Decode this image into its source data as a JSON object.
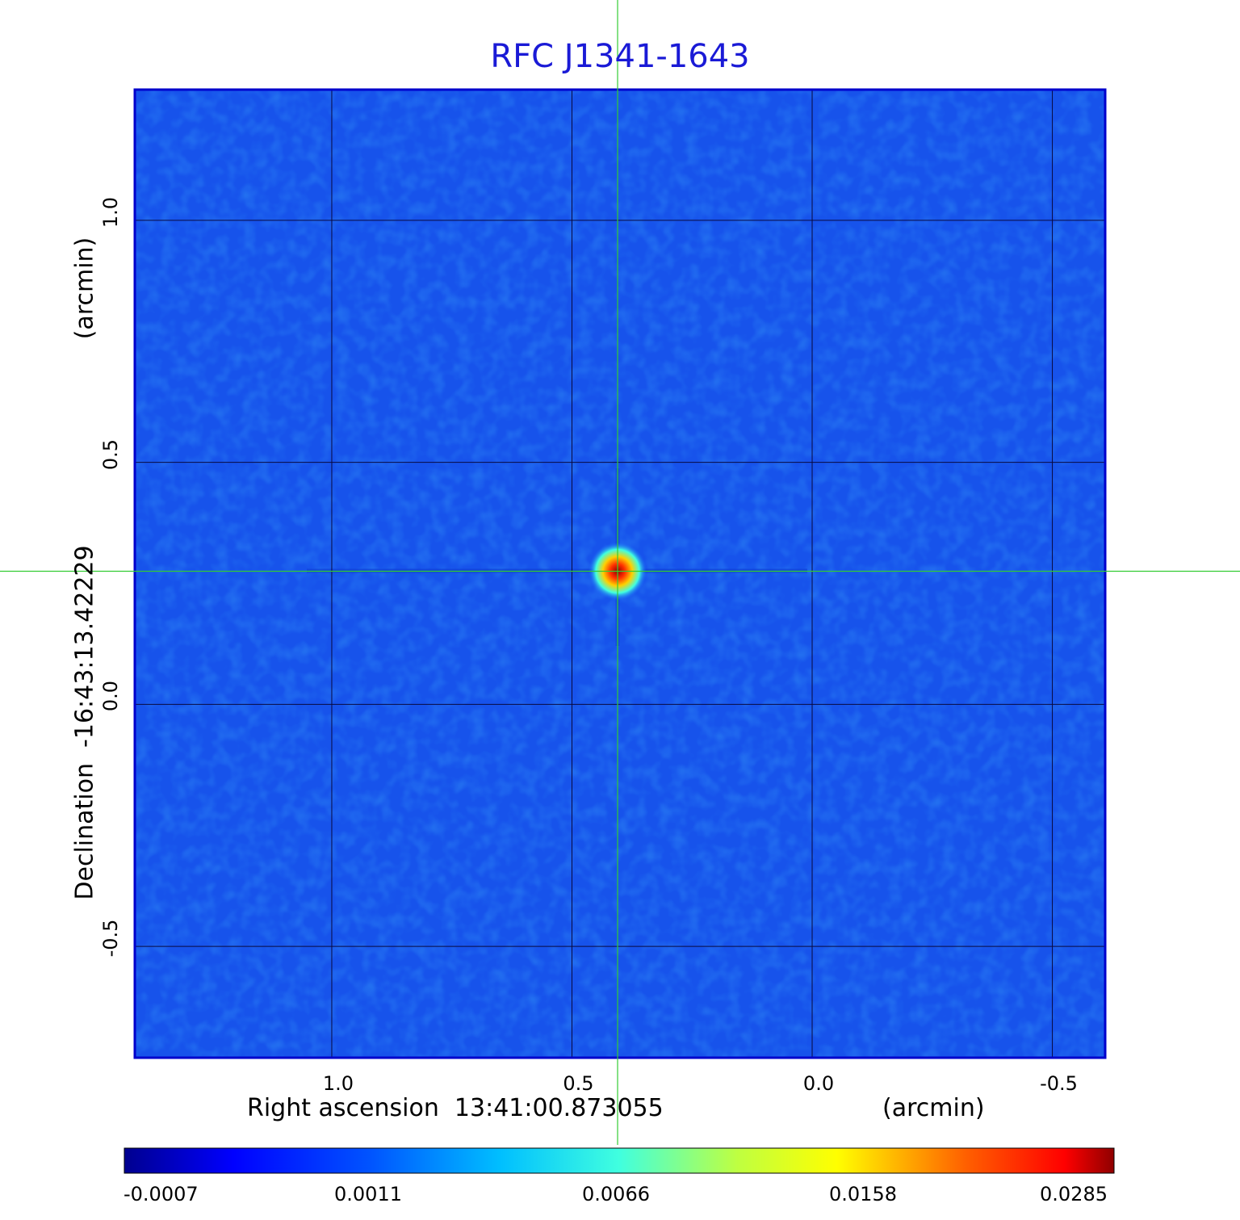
{
  "chart_data": {
    "type": "heatmap",
    "title": "RFC J1341-1643",
    "xlabel": "Right ascension  13:41:00.873055",
    "xunit": "(arcmin)",
    "ylabel": "Declination  -16:43:13.42229",
    "yunit": "(arcmin)",
    "xlim": [
      1.41,
      -0.61
    ],
    "ylim": [
      -0.73,
      1.27
    ],
    "xticks": [
      "1.0",
      "0.5",
      "0.0",
      "-0.5"
    ],
    "xtick_values": [
      1.0,
      0.5,
      0.0,
      -0.5
    ],
    "yticks": [
      "1.0",
      "0.5",
      "0.0",
      "-0.5"
    ],
    "ytick_values": [
      1.0,
      0.5,
      0.0,
      -0.5
    ],
    "grid": true,
    "crosshair": {
      "x": 0.405,
      "y": 0.275,
      "color": "#33cc33"
    },
    "source_peak": {
      "x": 0.405,
      "y": 0.275,
      "value": 0.0285
    },
    "colormap": "jet",
    "colorbar_ticks": [
      "-0.0007",
      "0.0011",
      "0.0066",
      "0.0158",
      "0.0285"
    ],
    "colorbar_range": [
      -0.0007,
      0.0285
    ]
  }
}
